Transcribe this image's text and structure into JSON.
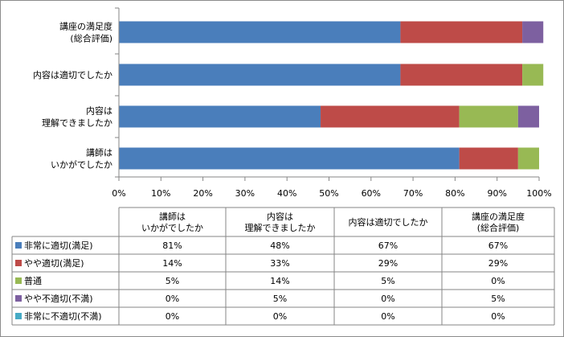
{
  "chart_data": {
    "type": "stacked-bar-horizontal",
    "categories": [
      [
        "講座の満足度",
        "(総合評価)"
      ],
      [
        "内容は適切でしたか"
      ],
      [
        "内容は",
        "理解できましたか"
      ],
      [
        "講師は",
        "いかがでしたか"
      ]
    ],
    "series": [
      {
        "name": "非常に適切(満足)",
        "color": "#4a7ebb",
        "values": [
          67,
          67,
          48,
          81
        ]
      },
      {
        "name": "やや適切(満足)",
        "color": "#be4b48",
        "values": [
          29,
          29,
          33,
          14
        ]
      },
      {
        "name": "普通",
        "color": "#98b954",
        "values": [
          0,
          5,
          14,
          5
        ]
      },
      {
        "name": "やや不適切(不満)",
        "color": "#7d60a0",
        "values": [
          5,
          0,
          5,
          0
        ]
      },
      {
        "name": "非常に不適切(不満)",
        "color": "#46aac5",
        "values": [
          0,
          0,
          0,
          0
        ]
      }
    ],
    "xlim": [
      0,
      100
    ],
    "x_ticks": [
      "0%",
      "10%",
      "20%",
      "30%",
      "40%",
      "50%",
      "60%",
      "70%",
      "80%",
      "90%",
      "100%"
    ],
    "legend_placement": "data-table-below",
    "data_table": {
      "columns": [
        [
          "講師は",
          "いかがでしたか"
        ],
        [
          "内容は",
          "理解できましたか"
        ],
        [
          "内容は適切でしたか"
        ],
        [
          "講座の満足度",
          "(総合評価)"
        ]
      ],
      "rows": [
        {
          "label": "非常に適切(満足)",
          "cells": [
            "81%",
            "48%",
            "67%",
            "67%"
          ]
        },
        {
          "label": "やや適切(満足)",
          "cells": [
            "14%",
            "33%",
            "29%",
            "29%"
          ]
        },
        {
          "label": "普通",
          "cells": [
            "5%",
            "14%",
            "5%",
            "0%"
          ]
        },
        {
          "label": "やや不適切(不満)",
          "cells": [
            "0%",
            "5%",
            "0%",
            "5%"
          ]
        },
        {
          "label": "非常に不適切(不満)",
          "cells": [
            "0%",
            "0%",
            "0%",
            "0%"
          ]
        }
      ]
    }
  }
}
